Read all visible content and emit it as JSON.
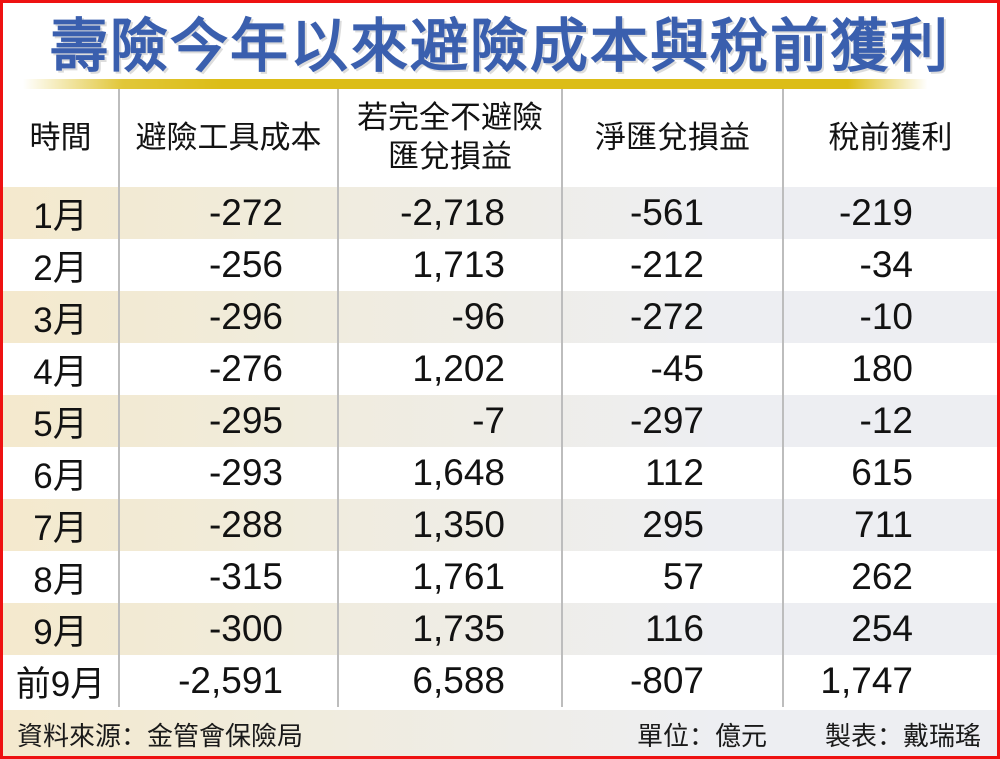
{
  "title": "壽險今年以來避險成本與稅前獲利",
  "colors": {
    "frame_border_red": "#ee1111",
    "title_blue": "#3a5fae",
    "gold_bar": "#dcbd17",
    "shaded_row_left_cream": "#f4e9cd",
    "shaded_row_right_gray": "#edeef2",
    "divider_gray": "#bdbdbd"
  },
  "table_headers_display": [
    "時間",
    "避險工具成本",
    "若完全不避險\n匯兌損益",
    "淨匯兌損益",
    "稅前獲利"
  ],
  "chart_data": {
    "type": "table",
    "title": "壽險今年以來避險成本與稅前獲利",
    "columns": [
      "時間",
      "避險工具成本",
      "若完全不避險匯兌損益",
      "淨匯兌損益",
      "稅前獲利"
    ],
    "rows": [
      [
        "1月",
        "-272",
        "-2,718",
        "-561",
        "-219"
      ],
      [
        "2月",
        "-256",
        "1,713",
        "-212",
        "-34"
      ],
      [
        "3月",
        "-296",
        "-96",
        "-272",
        "-10"
      ],
      [
        "4月",
        "-276",
        "1,202",
        "-45",
        "180"
      ],
      [
        "5月",
        "-295",
        "-7",
        "-297",
        "-12"
      ],
      [
        "6月",
        "-293",
        "1,648",
        "112",
        "615"
      ],
      [
        "7月",
        "-288",
        "1,350",
        "295",
        "711"
      ],
      [
        "8月",
        "-315",
        "1,761",
        "57",
        "262"
      ],
      [
        "9月",
        "-300",
        "1,735",
        "116",
        "254"
      ],
      [
        "前9月",
        "-2,591",
        "6,588",
        "-807",
        "1,747"
      ]
    ],
    "unit": "億元"
  },
  "footer": {
    "source": "資料來源：金管會保險局",
    "unit": "單位：億元",
    "credit": "製表：戴瑞瑤"
  }
}
